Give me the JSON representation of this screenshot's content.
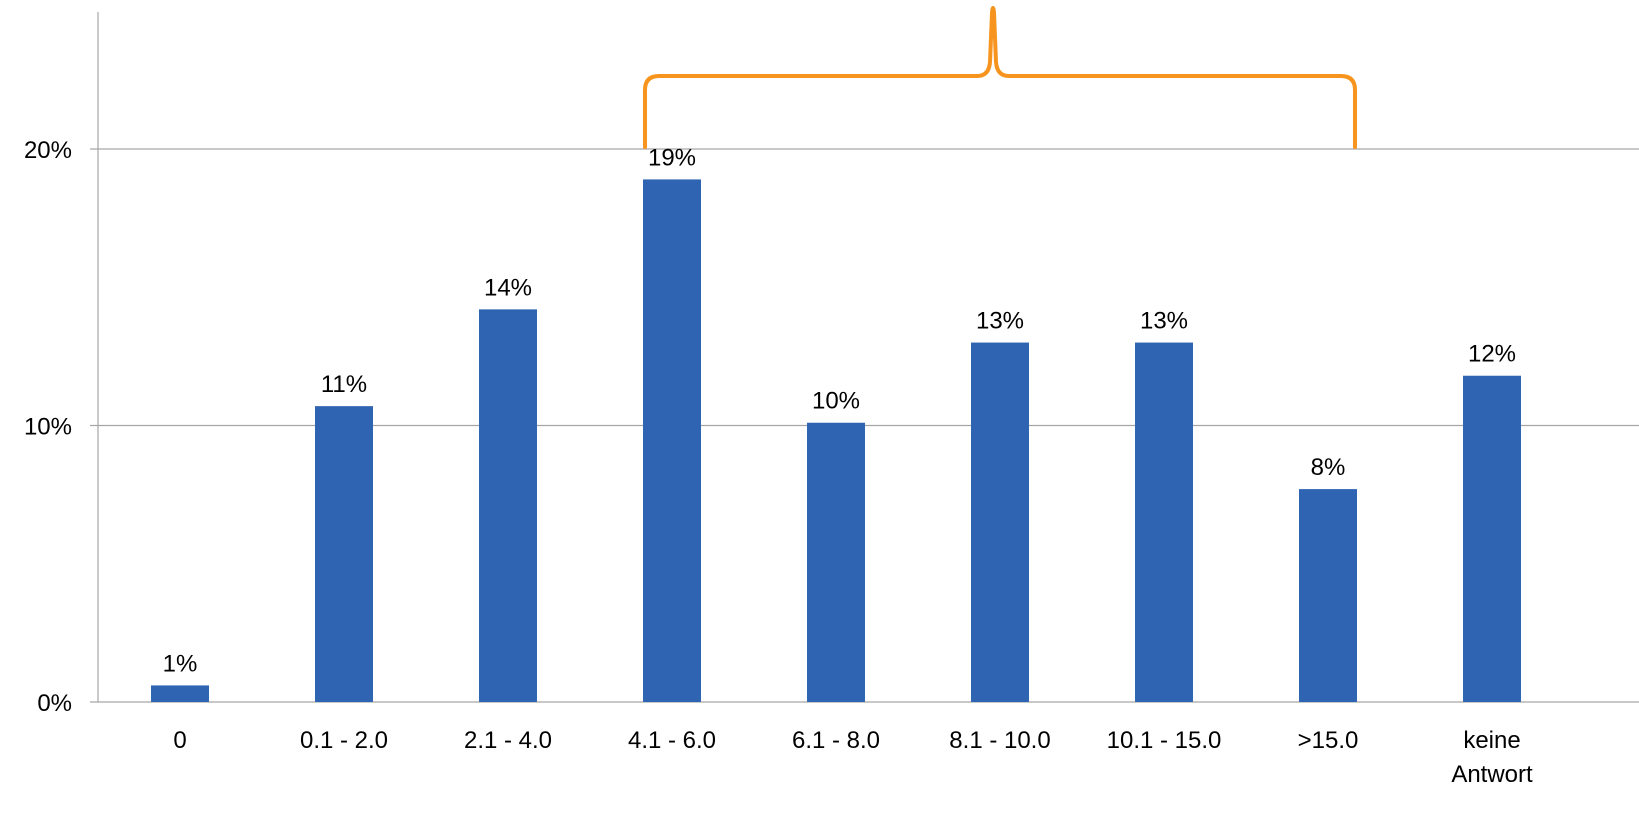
{
  "chart_data": {
    "type": "bar",
    "categories": [
      "0",
      "0.1 - 2.0",
      "2.1 - 4.0",
      "4.1 - 6.0",
      "6.1 - 8.0",
      "8.1 - 10.0",
      "10.1 - 15.0",
      ">15.0",
      "keine Antwort"
    ],
    "category_lines": [
      [
        "0"
      ],
      [
        "0.1 - 2.0"
      ],
      [
        "2.1 - 4.0"
      ],
      [
        "4.1 - 6.0"
      ],
      [
        "6.1 - 8.0"
      ],
      [
        "8.1 - 10.0"
      ],
      [
        "10.1 - 15.0"
      ],
      [
        ">15.0"
      ],
      [
        "keine",
        "Antwort"
      ]
    ],
    "values": [
      0.6,
      10.7,
      14.2,
      18.9,
      10.1,
      13.0,
      13.0,
      7.7,
      11.8
    ],
    "data_labels": [
      "1%",
      "11%",
      "14%",
      "19%",
      "10%",
      "13%",
      "13%",
      "8%",
      "12%"
    ],
    "ylim": [
      0,
      25
    ],
    "yticks": [
      0,
      10,
      20
    ],
    "ytick_labels": [
      "0%",
      "10%",
      "20%"
    ],
    "grid": true,
    "title": "",
    "xlabel": "",
    "ylabel": "",
    "bar_color": "#2E64B2",
    "grid_color": "#A6A6A6",
    "annotation": {
      "type": "brace",
      "from_category": 3,
      "to_category": 7,
      "color": "#F7941D"
    }
  }
}
